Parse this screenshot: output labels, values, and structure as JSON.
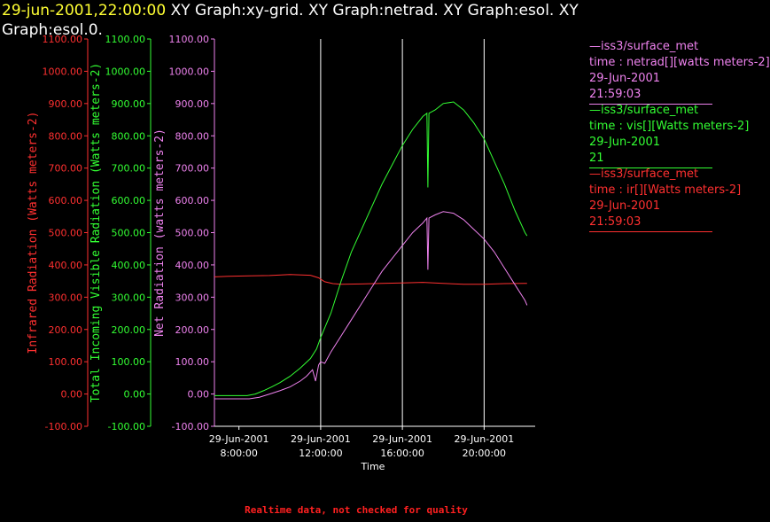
{
  "title": {
    "highlight": "29-jun-2001,22:00:00",
    "rest": "  XY Graph:xy-grid.  XY Graph:netrad.  XY Graph:esol.  XY Graph:esol.0."
  },
  "footer": "Realtime data, not checked for quality",
  "colors": {
    "ir": "#ff3030",
    "vis": "#33ff33",
    "net": "#ee82ee",
    "grid": "#ffffff",
    "axis": "#ffffff"
  },
  "legend": [
    {
      "line": "—iss3/surface_met",
      "desc": "time : netrad[][watts meters-2]",
      "date": "29-Jun-2001",
      "time": "21:59:03",
      "color": "#ee82ee"
    },
    {
      "line": "—iss3/surface_met",
      "desc": "time : vis[][Watts meters-2]",
      "date": "29-Jun-2001",
      "time": "21",
      "color": "#33ff33"
    },
    {
      "line": "—iss3/surface_met",
      "desc": "time : ir[][Watts meters-2]",
      "date": "29-Jun-2001",
      "time": "21:59:03",
      "color": "#ff3030"
    }
  ],
  "chart_data": {
    "type": "line",
    "xlabel": "Time",
    "x_ticks": [
      {
        "date": "29-Jun-2001",
        "time": "8:00:00"
      },
      {
        "date": "29-Jun-2001",
        "time": "12:00:00"
      },
      {
        "date": "29-Jun-2001",
        "time": "16:00:00"
      },
      {
        "date": "29-Jun-2001",
        "time": "20:00:00"
      }
    ],
    "x_grid_hours": [
      12,
      16,
      20
    ],
    "xlim_hours": [
      6.8,
      22.5
    ],
    "ylim": [
      -100,
      1100
    ],
    "y_ticks": [
      "1100.00",
      "1000.00",
      "900.00",
      "800.00",
      "700.00",
      "600.00",
      "500.00",
      "400.00",
      "300.00",
      "200.00",
      "100.00",
      "0.00",
      "-100.00"
    ],
    "y_axes": [
      {
        "label": "Infrared Radiation (Watts meters-2)",
        "color": "#ff3030",
        "series": "ir"
      },
      {
        "label": "Total Incoming Visible Radiation (Watts meters-2)",
        "color": "#33ff33",
        "series": "vis"
      },
      {
        "label": "Net Radiation (watts meters-2)",
        "color": "#ee82ee",
        "series": "net"
      }
    ],
    "series": [
      {
        "name": "iss3/surface_met ir",
        "key": "ir",
        "color": "#ff3030",
        "points": [
          [
            6.8,
            363
          ],
          [
            7.5,
            365
          ],
          [
            8.5,
            366
          ],
          [
            9.5,
            367
          ],
          [
            10.5,
            370
          ],
          [
            11.5,
            368
          ],
          [
            11.9,
            360
          ],
          [
            12.2,
            348
          ],
          [
            12.6,
            342
          ],
          [
            13,
            340
          ],
          [
            14,
            341
          ],
          [
            15,
            343
          ],
          [
            16,
            344
          ],
          [
            17,
            346
          ],
          [
            18,
            343
          ],
          [
            19,
            340
          ],
          [
            20,
            340
          ],
          [
            21,
            342
          ],
          [
            22,
            343
          ],
          [
            22.1,
            343
          ]
        ]
      },
      {
        "name": "iss3/surface_met vis",
        "key": "vis",
        "color": "#33ff33",
        "points": [
          [
            6.8,
            -5
          ],
          [
            7.5,
            -5
          ],
          [
            8.4,
            -5
          ],
          [
            8.8,
            0
          ],
          [
            9.2,
            10
          ],
          [
            9.6,
            22
          ],
          [
            10,
            35
          ],
          [
            10.5,
            55
          ],
          [
            11,
            80
          ],
          [
            11.5,
            110
          ],
          [
            11.8,
            140
          ],
          [
            12,
            175
          ],
          [
            12.5,
            250
          ],
          [
            13,
            350
          ],
          [
            13.5,
            440
          ],
          [
            14,
            510
          ],
          [
            14.5,
            580
          ],
          [
            15,
            650
          ],
          [
            15.5,
            710
          ],
          [
            16,
            770
          ],
          [
            16.5,
            820
          ],
          [
            17,
            860
          ],
          [
            17.2,
            870
          ],
          [
            17.25,
            640
          ],
          [
            17.3,
            870
          ],
          [
            17.6,
            880
          ],
          [
            18,
            900
          ],
          [
            18.5,
            905
          ],
          [
            19,
            880
          ],
          [
            19.5,
            840
          ],
          [
            20,
            790
          ],
          [
            20.5,
            720
          ],
          [
            21,
            650
          ],
          [
            21.5,
            570
          ],
          [
            22,
            500
          ],
          [
            22.1,
            490
          ]
        ]
      },
      {
        "name": "iss3/surface_met netrad",
        "key": "net",
        "color": "#ee82ee",
        "points": [
          [
            6.8,
            -15
          ],
          [
            7.5,
            -15
          ],
          [
            8.5,
            -15
          ],
          [
            9,
            -10
          ],
          [
            9.5,
            0
          ],
          [
            10,
            10
          ],
          [
            10.5,
            22
          ],
          [
            11,
            40
          ],
          [
            11.3,
            55
          ],
          [
            11.6,
            75
          ],
          [
            11.75,
            40
          ],
          [
            11.9,
            90
          ],
          [
            12,
            100
          ],
          [
            12.2,
            95
          ],
          [
            12.5,
            130
          ],
          [
            13,
            180
          ],
          [
            13.5,
            230
          ],
          [
            14,
            280
          ],
          [
            14.5,
            330
          ],
          [
            15,
            380
          ],
          [
            15.5,
            420
          ],
          [
            16,
            460
          ],
          [
            16.5,
            500
          ],
          [
            17,
            530
          ],
          [
            17.2,
            545
          ],
          [
            17.25,
            385
          ],
          [
            17.3,
            545
          ],
          [
            17.6,
            555
          ],
          [
            18,
            565
          ],
          [
            18.5,
            560
          ],
          [
            19,
            540
          ],
          [
            19.5,
            510
          ],
          [
            20,
            480
          ],
          [
            20.5,
            440
          ],
          [
            21,
            390
          ],
          [
            21.5,
            340
          ],
          [
            22,
            290
          ],
          [
            22.1,
            275
          ]
        ]
      }
    ]
  }
}
